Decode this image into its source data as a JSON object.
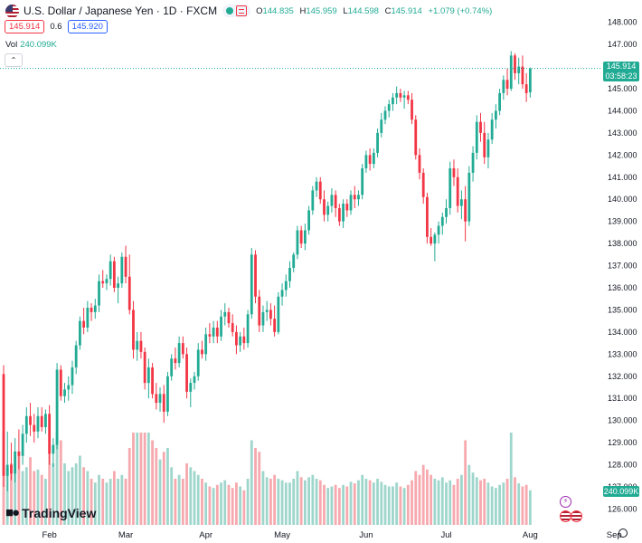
{
  "header": {
    "symbol_title": "U.S. Dollar / Japanese Yen · 1D · FXCM",
    "open_key": "O",
    "open": "144.835",
    "high_key": "H",
    "high": "145.959",
    "low_key": "L",
    "low": "144.598",
    "close_key": "C",
    "close": "145.914",
    "change": "+1.079 (+0.74%)",
    "sell_price": "145.914",
    "spread": "0.6",
    "buy_price": "145.920",
    "volume_label": "Vol",
    "volume_value": "240.099K"
  },
  "price_label": {
    "price": "145.914",
    "countdown": "03:58:23"
  },
  "volume_axis_label": "240.099K",
  "brand": "TradingView",
  "colors": {
    "up": "#22ab94",
    "down": "#f23645",
    "vol_up": "#9fd6cc",
    "vol_down": "#f6a9ae",
    "accent": "#2962ff"
  },
  "chart_data": {
    "type": "candlestick",
    "ylim": [
      125.2,
      148.6
    ],
    "y_ticks": [
      126,
      127,
      128,
      129,
      130,
      131,
      132,
      133,
      134,
      135,
      136,
      137,
      138,
      139,
      140,
      141,
      142,
      143,
      144,
      145,
      146,
      147,
      148
    ],
    "x_ticks": [
      {
        "label": "Feb",
        "index": 12
      },
      {
        "label": "Mar",
        "index": 32
      },
      {
        "label": "Apr",
        "index": 53
      },
      {
        "label": "May",
        "index": 73
      },
      {
        "label": "Jun",
        "index": 95
      },
      {
        "label": "Jul",
        "index": 116
      },
      {
        "label": "Aug",
        "index": 138
      },
      {
        "label": "Sep",
        "index": 160
      }
    ],
    "grid": false,
    "series": [
      {
        "open": 132.1,
        "high": 132.5,
        "low": 127.0,
        "close": 127.5,
        "volume": 160
      },
      {
        "open": 127.5,
        "high": 129.5,
        "low": 126.8,
        "close": 128.0,
        "volume": 75
      },
      {
        "open": 128.0,
        "high": 129.0,
        "low": 127.3,
        "close": 127.6,
        "volume": 80
      },
      {
        "open": 127.6,
        "high": 129.2,
        "low": 127.2,
        "close": 128.6,
        "volume": 82
      },
      {
        "open": 128.6,
        "high": 129.6,
        "low": 127.8,
        "close": 128.4,
        "volume": 90
      },
      {
        "open": 128.4,
        "high": 129.8,
        "low": 128.0,
        "close": 129.4,
        "volume": 70
      },
      {
        "open": 129.4,
        "high": 130.6,
        "low": 129.0,
        "close": 130.2,
        "volume": 75
      },
      {
        "open": 130.2,
        "high": 130.8,
        "low": 129.3,
        "close": 129.8,
        "volume": 88
      },
      {
        "open": 129.8,
        "high": 130.3,
        "low": 129.0,
        "close": 129.5,
        "volume": 70
      },
      {
        "open": 129.5,
        "high": 130.6,
        "low": 129.2,
        "close": 130.2,
        "volume": 72
      },
      {
        "open": 130.2,
        "high": 130.6,
        "low": 129.5,
        "close": 129.7,
        "volume": 65
      },
      {
        "open": 129.7,
        "high": 130.5,
        "low": 129.4,
        "close": 130.3,
        "volume": 60
      },
      {
        "open": 130.3,
        "high": 130.7,
        "low": 128.0,
        "close": 128.5,
        "volume": 95
      },
      {
        "open": 128.5,
        "high": 129.2,
        "low": 127.9,
        "close": 128.9,
        "volume": 80
      },
      {
        "open": 128.9,
        "high": 132.6,
        "low": 128.7,
        "close": 132.3,
        "volume": 140
      },
      {
        "open": 132.3,
        "high": 132.5,
        "low": 130.9,
        "close": 131.1,
        "volume": 110
      },
      {
        "open": 131.1,
        "high": 131.7,
        "low": 130.8,
        "close": 131.4,
        "volume": 80
      },
      {
        "open": 131.4,
        "high": 132.0,
        "low": 130.9,
        "close": 131.6,
        "volume": 70
      },
      {
        "open": 131.6,
        "high": 132.7,
        "low": 131.2,
        "close": 132.4,
        "volume": 75
      },
      {
        "open": 132.4,
        "high": 133.6,
        "low": 132.1,
        "close": 133.4,
        "volume": 80
      },
      {
        "open": 133.4,
        "high": 134.7,
        "low": 133.2,
        "close": 134.5,
        "volume": 90
      },
      {
        "open": 134.5,
        "high": 135.1,
        "low": 133.9,
        "close": 134.2,
        "volume": 75
      },
      {
        "open": 134.2,
        "high": 135.4,
        "low": 134.0,
        "close": 135.1,
        "volume": 70
      },
      {
        "open": 135.1,
        "high": 135.3,
        "low": 134.5,
        "close": 134.9,
        "volume": 60
      },
      {
        "open": 134.9,
        "high": 135.5,
        "low": 134.6,
        "close": 135.2,
        "volume": 55
      },
      {
        "open": 135.2,
        "high": 136.6,
        "low": 134.9,
        "close": 136.3,
        "volume": 65
      },
      {
        "open": 136.3,
        "high": 136.8,
        "low": 136.0,
        "close": 136.2,
        "volume": 60
      },
      {
        "open": 136.2,
        "high": 136.6,
        "low": 135.9,
        "close": 136.4,
        "volume": 55
      },
      {
        "open": 136.4,
        "high": 137.5,
        "low": 136.1,
        "close": 137.2,
        "volume": 60
      },
      {
        "open": 137.2,
        "high": 137.4,
        "low": 135.8,
        "close": 136.0,
        "volume": 70
      },
      {
        "open": 136.0,
        "high": 136.5,
        "low": 135.3,
        "close": 136.2,
        "volume": 60
      },
      {
        "open": 136.2,
        "high": 137.6,
        "low": 136.0,
        "close": 137.4,
        "volume": 65
      },
      {
        "open": 137.4,
        "high": 137.9,
        "low": 136.2,
        "close": 136.5,
        "volume": 60
      },
      {
        "open": 136.5,
        "high": 137.5,
        "low": 134.8,
        "close": 135.0,
        "volume": 100
      },
      {
        "open": 135.0,
        "high": 135.4,
        "low": 132.8,
        "close": 133.2,
        "volume": 185
      },
      {
        "open": 133.2,
        "high": 134.0,
        "low": 132.7,
        "close": 133.6,
        "volume": 140
      },
      {
        "open": 133.6,
        "high": 134.0,
        "low": 132.8,
        "close": 133.1,
        "volume": 125
      },
      {
        "open": 133.1,
        "high": 133.3,
        "low": 131.4,
        "close": 131.7,
        "volume": 170
      },
      {
        "open": 131.7,
        "high": 132.8,
        "low": 131.0,
        "close": 132.4,
        "volume": 120
      },
      {
        "open": 132.4,
        "high": 132.6,
        "low": 131.0,
        "close": 131.2,
        "volume": 110
      },
      {
        "open": 131.2,
        "high": 131.7,
        "low": 130.5,
        "close": 130.8,
        "volume": 100
      },
      {
        "open": 130.8,
        "high": 131.5,
        "low": 130.4,
        "close": 131.2,
        "volume": 85
      },
      {
        "open": 131.2,
        "high": 131.6,
        "low": 129.9,
        "close": 130.4,
        "volume": 95
      },
      {
        "open": 130.4,
        "high": 132.2,
        "low": 130.2,
        "close": 132.0,
        "volume": 100
      },
      {
        "open": 132.0,
        "high": 133.0,
        "low": 131.8,
        "close": 132.8,
        "volume": 75
      },
      {
        "open": 132.8,
        "high": 133.3,
        "low": 132.3,
        "close": 132.6,
        "volume": 60
      },
      {
        "open": 132.6,
        "high": 133.8,
        "low": 132.4,
        "close": 133.5,
        "volume": 65
      },
      {
        "open": 133.5,
        "high": 133.8,
        "low": 132.8,
        "close": 133.0,
        "volume": 60
      },
      {
        "open": 133.0,
        "high": 133.3,
        "low": 131.0,
        "close": 131.3,
        "volume": 80
      },
      {
        "open": 131.3,
        "high": 131.9,
        "low": 130.6,
        "close": 131.7,
        "volume": 75
      },
      {
        "open": 131.7,
        "high": 132.2,
        "low": 131.4,
        "close": 132.0,
        "volume": 70
      },
      {
        "open": 132.0,
        "high": 133.5,
        "low": 131.8,
        "close": 133.2,
        "volume": 65
      },
      {
        "open": 133.2,
        "high": 133.6,
        "low": 132.8,
        "close": 133.0,
        "volume": 60
      },
      {
        "open": 133.0,
        "high": 134.2,
        "low": 132.7,
        "close": 133.9,
        "volume": 55
      },
      {
        "open": 133.9,
        "high": 134.4,
        "low": 133.5,
        "close": 133.8,
        "volume": 50
      },
      {
        "open": 133.8,
        "high": 134.5,
        "low": 133.5,
        "close": 134.2,
        "volume": 48
      },
      {
        "open": 134.2,
        "high": 134.5,
        "low": 133.5,
        "close": 133.8,
        "volume": 52
      },
      {
        "open": 133.8,
        "high": 135.0,
        "low": 133.6,
        "close": 134.7,
        "volume": 55
      },
      {
        "open": 134.7,
        "high": 135.3,
        "low": 134.3,
        "close": 134.9,
        "volume": 58
      },
      {
        "open": 134.9,
        "high": 135.1,
        "low": 134.2,
        "close": 134.4,
        "volume": 52
      },
      {
        "open": 134.4,
        "high": 134.8,
        "low": 133.8,
        "close": 134.0,
        "volume": 48
      },
      {
        "open": 134.0,
        "high": 134.3,
        "low": 133.0,
        "close": 133.4,
        "volume": 55
      },
      {
        "open": 133.4,
        "high": 134.0,
        "low": 133.1,
        "close": 133.8,
        "volume": 50
      },
      {
        "open": 133.8,
        "high": 134.2,
        "low": 133.2,
        "close": 133.5,
        "volume": 45
      },
      {
        "open": 133.5,
        "high": 135.0,
        "low": 133.3,
        "close": 134.8,
        "volume": 60
      },
      {
        "open": 134.8,
        "high": 137.8,
        "low": 134.6,
        "close": 137.5,
        "volume": 110
      },
      {
        "open": 137.5,
        "high": 137.7,
        "low": 135.3,
        "close": 135.6,
        "volume": 100
      },
      {
        "open": 135.6,
        "high": 135.9,
        "low": 134.0,
        "close": 134.3,
        "volume": 95
      },
      {
        "open": 134.3,
        "high": 135.2,
        "low": 134.0,
        "close": 134.9,
        "volume": 70
      },
      {
        "open": 134.9,
        "high": 135.4,
        "low": 134.5,
        "close": 135.0,
        "volume": 62
      },
      {
        "open": 135.0,
        "high": 135.3,
        "low": 134.3,
        "close": 134.6,
        "volume": 60
      },
      {
        "open": 134.6,
        "high": 135.2,
        "low": 133.8,
        "close": 134.0,
        "volume": 65
      },
      {
        "open": 134.0,
        "high": 135.8,
        "low": 133.9,
        "close": 135.6,
        "volume": 60
      },
      {
        "open": 135.6,
        "high": 136.2,
        "low": 135.2,
        "close": 135.9,
        "volume": 58
      },
      {
        "open": 135.9,
        "high": 136.6,
        "low": 135.6,
        "close": 136.3,
        "volume": 55
      },
      {
        "open": 136.3,
        "high": 137.2,
        "low": 136.0,
        "close": 136.9,
        "volume": 55
      },
      {
        "open": 136.9,
        "high": 137.6,
        "low": 136.7,
        "close": 137.5,
        "volume": 60
      },
      {
        "open": 137.5,
        "high": 138.8,
        "low": 137.3,
        "close": 138.6,
        "volume": 70
      },
      {
        "open": 138.6,
        "high": 138.8,
        "low": 137.8,
        "close": 138.0,
        "volume": 62
      },
      {
        "open": 138.0,
        "high": 138.9,
        "low": 137.7,
        "close": 138.6,
        "volume": 58
      },
      {
        "open": 138.6,
        "high": 139.7,
        "low": 138.4,
        "close": 139.5,
        "volume": 62
      },
      {
        "open": 139.5,
        "high": 140.6,
        "low": 139.3,
        "close": 140.4,
        "volume": 65
      },
      {
        "open": 140.4,
        "high": 141.0,
        "low": 140.1,
        "close": 140.8,
        "volume": 60
      },
      {
        "open": 140.8,
        "high": 141.0,
        "low": 139.8,
        "close": 140.0,
        "volume": 58
      },
      {
        "open": 140.0,
        "high": 140.4,
        "low": 139.0,
        "close": 139.3,
        "volume": 52
      },
      {
        "open": 139.3,
        "high": 139.9,
        "low": 139.0,
        "close": 139.7,
        "volume": 48
      },
      {
        "open": 139.7,
        "high": 140.5,
        "low": 139.4,
        "close": 140.2,
        "volume": 50
      },
      {
        "open": 140.2,
        "high": 140.4,
        "low": 139.2,
        "close": 139.6,
        "volume": 52
      },
      {
        "open": 139.6,
        "high": 139.8,
        "low": 138.8,
        "close": 139.0,
        "volume": 48
      },
      {
        "open": 139.0,
        "high": 140.0,
        "low": 138.7,
        "close": 139.8,
        "volume": 52
      },
      {
        "open": 139.8,
        "high": 140.0,
        "low": 139.2,
        "close": 139.5,
        "volume": 50
      },
      {
        "open": 139.5,
        "high": 140.4,
        "low": 139.3,
        "close": 140.2,
        "volume": 56
      },
      {
        "open": 140.2,
        "high": 140.6,
        "low": 139.6,
        "close": 140.0,
        "volume": 54
      },
      {
        "open": 140.0,
        "high": 140.4,
        "low": 139.7,
        "close": 140.2,
        "volume": 58
      },
      {
        "open": 140.2,
        "high": 141.6,
        "low": 140.0,
        "close": 141.4,
        "volume": 65
      },
      {
        "open": 141.4,
        "high": 142.2,
        "low": 141.2,
        "close": 142.0,
        "volume": 60
      },
      {
        "open": 142.0,
        "high": 142.3,
        "low": 141.3,
        "close": 141.6,
        "volume": 58
      },
      {
        "open": 141.6,
        "high": 142.3,
        "low": 141.4,
        "close": 142.1,
        "volume": 55
      },
      {
        "open": 142.1,
        "high": 143.2,
        "low": 141.9,
        "close": 143.0,
        "volume": 60
      },
      {
        "open": 143.0,
        "high": 143.9,
        "low": 142.8,
        "close": 143.6,
        "volume": 56
      },
      {
        "open": 143.6,
        "high": 144.2,
        "low": 143.4,
        "close": 144.0,
        "volume": 52
      },
      {
        "open": 144.0,
        "high": 144.5,
        "low": 143.7,
        "close": 144.3,
        "volume": 50
      },
      {
        "open": 144.3,
        "high": 144.8,
        "low": 144.0,
        "close": 144.6,
        "volume": 50
      },
      {
        "open": 144.6,
        "high": 145.1,
        "low": 144.3,
        "close": 144.8,
        "volume": 55
      },
      {
        "open": 144.8,
        "high": 145.0,
        "low": 144.4,
        "close": 144.6,
        "volume": 50
      },
      {
        "open": 144.6,
        "high": 144.9,
        "low": 144.1,
        "close": 144.7,
        "volume": 48
      },
      {
        "open": 144.7,
        "high": 144.9,
        "low": 144.3,
        "close": 144.5,
        "volume": 52
      },
      {
        "open": 144.5,
        "high": 144.8,
        "low": 143.4,
        "close": 143.6,
        "volume": 58
      },
      {
        "open": 143.6,
        "high": 143.8,
        "low": 141.8,
        "close": 142.0,
        "volume": 70
      },
      {
        "open": 142.0,
        "high": 142.3,
        "low": 140.9,
        "close": 141.2,
        "volume": 65
      },
      {
        "open": 141.2,
        "high": 141.4,
        "low": 139.8,
        "close": 140.1,
        "volume": 78
      },
      {
        "open": 140.1,
        "high": 140.3,
        "low": 138.0,
        "close": 138.3,
        "volume": 72
      },
      {
        "open": 138.3,
        "high": 138.7,
        "low": 137.9,
        "close": 138.0,
        "volume": 65
      },
      {
        "open": 138.0,
        "high": 138.5,
        "low": 137.2,
        "close": 138.4,
        "volume": 60
      },
      {
        "open": 138.4,
        "high": 139.0,
        "low": 138.0,
        "close": 138.8,
        "volume": 58
      },
      {
        "open": 138.8,
        "high": 139.4,
        "low": 138.4,
        "close": 139.2,
        "volume": 62
      },
      {
        "open": 139.2,
        "high": 140.0,
        "low": 138.9,
        "close": 139.6,
        "volume": 55
      },
      {
        "open": 139.6,
        "high": 141.7,
        "low": 139.3,
        "close": 141.4,
        "volume": 58
      },
      {
        "open": 141.4,
        "high": 141.8,
        "low": 140.6,
        "close": 141.0,
        "volume": 52
      },
      {
        "open": 141.0,
        "high": 141.4,
        "low": 139.4,
        "close": 139.7,
        "volume": 60
      },
      {
        "open": 139.7,
        "high": 140.4,
        "low": 139.1,
        "close": 140.0,
        "volume": 65
      },
      {
        "open": 140.0,
        "high": 140.6,
        "low": 138.1,
        "close": 139.0,
        "volume": 110
      },
      {
        "open": 139.0,
        "high": 141.5,
        "low": 138.8,
        "close": 141.2,
        "volume": 78
      },
      {
        "open": 141.2,
        "high": 142.4,
        "low": 140.8,
        "close": 142.1,
        "volume": 68
      },
      {
        "open": 142.1,
        "high": 143.8,
        "low": 141.8,
        "close": 143.5,
        "volume": 62
      },
      {
        "open": 143.5,
        "high": 143.9,
        "low": 142.6,
        "close": 143.0,
        "volume": 58
      },
      {
        "open": 143.0,
        "high": 143.5,
        "low": 141.6,
        "close": 141.9,
        "volume": 60
      },
      {
        "open": 141.9,
        "high": 143.0,
        "low": 141.4,
        "close": 142.7,
        "volume": 55
      },
      {
        "open": 142.7,
        "high": 143.9,
        "low": 142.5,
        "close": 143.6,
        "volume": 50
      },
      {
        "open": 143.6,
        "high": 144.3,
        "low": 143.2,
        "close": 144.0,
        "volume": 48
      },
      {
        "open": 144.0,
        "high": 145.0,
        "low": 143.8,
        "close": 144.8,
        "volume": 52
      },
      {
        "open": 144.8,
        "high": 145.6,
        "low": 144.5,
        "close": 145.4,
        "volume": 55
      },
      {
        "open": 145.4,
        "high": 145.9,
        "low": 144.7,
        "close": 145.0,
        "volume": 60
      },
      {
        "open": 145.0,
        "high": 146.7,
        "low": 144.9,
        "close": 146.5,
        "volume": 120
      },
      {
        "open": 146.5,
        "high": 146.6,
        "low": 145.4,
        "close": 145.7,
        "volume": 62
      },
      {
        "open": 145.7,
        "high": 146.4,
        "low": 145.2,
        "close": 146.0,
        "volume": 54
      },
      {
        "open": 146.0,
        "high": 146.5,
        "low": 145.0,
        "close": 145.2,
        "volume": 50
      },
      {
        "open": 145.2,
        "high": 145.7,
        "low": 144.4,
        "close": 144.8,
        "volume": 52
      },
      {
        "open": 144.835,
        "high": 145.959,
        "low": 144.598,
        "close": 145.914,
        "volume": 45
      }
    ],
    "volume_axis": {
      "max": 120,
      "label": "240.099K"
    },
    "last_price": 145.914
  }
}
